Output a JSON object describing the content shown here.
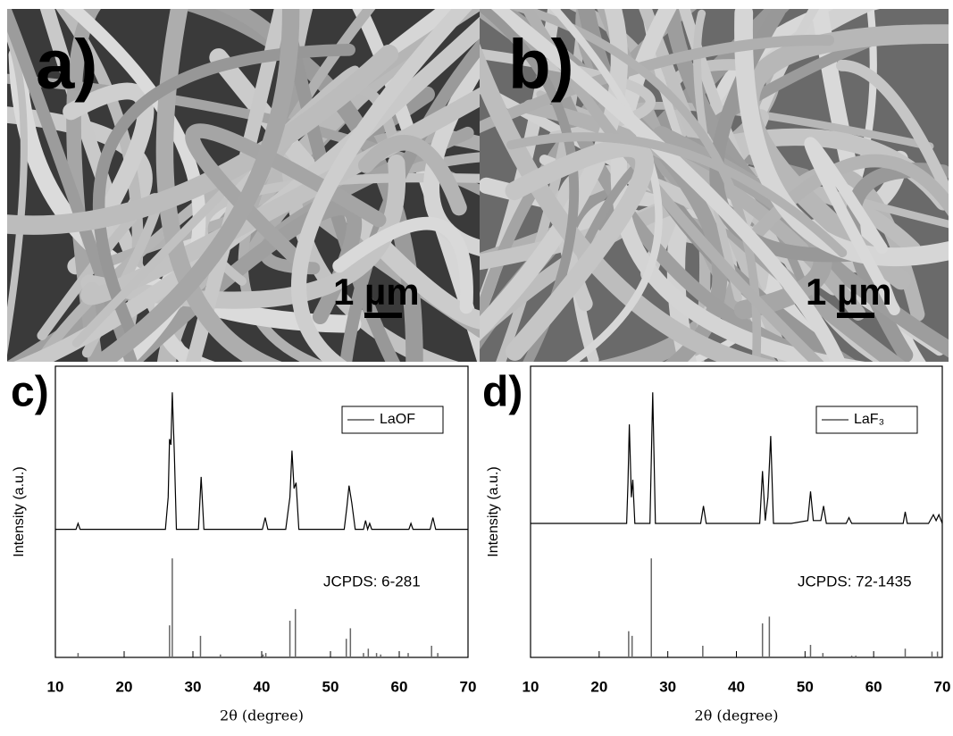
{
  "images": [
    {
      "label": "a)",
      "scale_bar": "1 µm"
    },
    {
      "label": "b)",
      "scale_bar": "1 µm"
    }
  ],
  "chart_data": [
    {
      "type": "line",
      "label": "c)",
      "xlabel": "2θ (degree)",
      "ylabel": "Intensity (a.u.)",
      "xlim": [
        10,
        70
      ],
      "xticks": [
        10,
        20,
        30,
        40,
        50,
        60,
        70
      ],
      "ylim": [
        0,
        100
      ],
      "legend": "top-right",
      "series": [
        {
          "name": "LaOF",
          "color": "#000000",
          "x": [
            10,
            12,
            13,
            13.3,
            13.6,
            16,
            20,
            24,
            26,
            26.4,
            26.6,
            26.8,
            27,
            27.3,
            27.6,
            29,
            30.8,
            31.2,
            31.6,
            34,
            40.1,
            40.5,
            40.9,
            43.5,
            44.1,
            44.4,
            44.7,
            45,
            45.4,
            48,
            52,
            52.4,
            52.7,
            53.1,
            53.6,
            54.8,
            55.1,
            55.4,
            55.7,
            56,
            58,
            61.4,
            61.7,
            62,
            64.5,
            64.9,
            65.3,
            67,
            70
          ],
          "values": [
            44,
            44,
            44,
            46,
            44,
            44,
            44,
            44,
            44,
            55,
            75,
            73,
            91,
            70,
            44,
            44,
            44,
            62,
            44,
            44,
            44,
            48,
            44,
            44,
            55,
            71,
            58,
            60,
            44,
            44,
            44,
            52,
            59,
            53,
            44,
            44,
            47,
            44,
            46,
            44,
            44,
            44,
            46,
            44,
            44,
            48,
            44,
            44,
            44
          ]
        }
      ],
      "reference": {
        "label": "JCPDS: 6-281",
        "color": "#666666",
        "x": [
          13.3,
          26.6,
          27,
          31.1,
          34,
          40.2,
          40.6,
          44.1,
          44.9,
          52.3,
          52.9,
          54.8,
          55.5,
          56.7,
          57.3,
          61.3,
          64.7,
          65.6
        ],
        "values": [
          1.5,
          11,
          34,
          7.4,
          1,
          1,
          1.5,
          12.6,
          16.6,
          6.4,
          10,
          1.5,
          3,
          1.5,
          1,
          1.5,
          4,
          1.5
        ]
      }
    },
    {
      "type": "line",
      "label": "d)",
      "xlabel": "2θ (degree)",
      "ylabel": "Intensity (a.u.)",
      "xlim": [
        10,
        70
      ],
      "xticks": [
        10,
        20,
        30,
        40,
        50,
        60,
        70
      ],
      "ylim": [
        0,
        100
      ],
      "legend": "top-right",
      "series": [
        {
          "name": "LaF₃",
          "color": "#000000",
          "x": [
            10,
            14,
            18,
            22,
            24,
            24.2,
            24.4,
            24.7,
            24.9,
            25.2,
            26,
            27.4,
            27.8,
            28.2,
            30,
            34.8,
            35.2,
            35.6,
            40,
            43.4,
            43.8,
            44.2,
            44.6,
            45,
            45.4,
            48,
            50.4,
            50.8,
            51.2,
            52.3,
            52.7,
            53.1,
            56,
            56.4,
            56.8,
            62,
            64.3,
            64.6,
            64.9,
            68,
            68.7,
            69.1,
            69.5,
            70
          ],
          "values": [
            46,
            46,
            46,
            46,
            46,
            60,
            80,
            55,
            61,
            46,
            46,
            46,
            91,
            46,
            46,
            46,
            52,
            46,
            46,
            46,
            64,
            47,
            55,
            76,
            46,
            46,
            47,
            57,
            47,
            47,
            52,
            46,
            46,
            48,
            46,
            46,
            46,
            50,
            46,
            46,
            49,
            47,
            49,
            46
          ]
        }
      ],
      "reference": {
        "label": "JCPDS: 72-1435",
        "color": "#666666",
        "x": [
          24.3,
          24.8,
          27.6,
          35.1,
          43.8,
          44.8,
          50.8,
          52.6,
          56.8,
          57.4,
          64.6,
          68.5,
          69.3
        ],
        "values": [
          9,
          7.4,
          34,
          4,
          11.7,
          14,
          4.3,
          1.5,
          0.6,
          0.6,
          3,
          2,
          2
        ]
      }
    }
  ]
}
